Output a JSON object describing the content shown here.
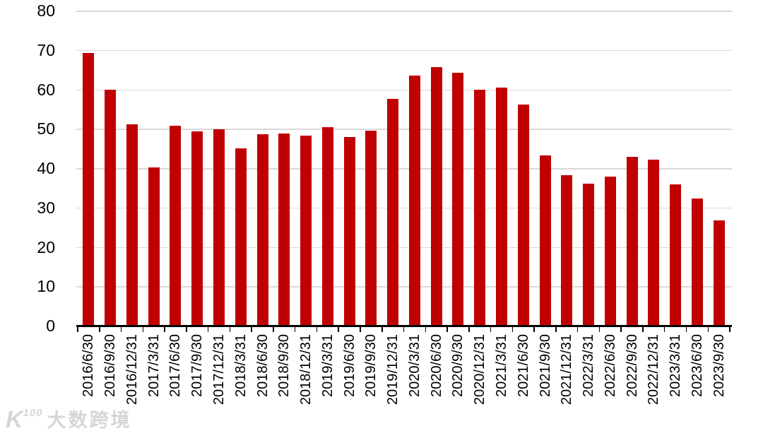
{
  "chart_data": {
    "type": "bar",
    "title": "",
    "xlabel": "",
    "ylabel": "",
    "categories": [
      "2016/6/30",
      "2016/9/30",
      "2016/12/31",
      "2017/3/31",
      "2017/6/30",
      "2017/9/30",
      "2017/12/31",
      "2018/3/31",
      "2018/6/30",
      "2018/9/30",
      "2018/12/31",
      "2019/3/31",
      "2019/6/30",
      "2019/9/30",
      "2019/12/31",
      "2020/3/31",
      "2020/6/30",
      "2020/9/30",
      "2020/12/31",
      "2021/3/31",
      "2021/6/30",
      "2021/9/30",
      "2021/12/31",
      "2022/3/31",
      "2022/6/30",
      "2022/9/30",
      "2022/12/31",
      "2023/3/31",
      "2023/6/30",
      "2023/9/30"
    ],
    "values": [
      69.2,
      59.9,
      51.2,
      40.2,
      50.8,
      49.3,
      49.9,
      45.1,
      48.6,
      48.8,
      48.3,
      50.4,
      47.9,
      49.5,
      57.6,
      63.5,
      65.6,
      64.2,
      60.0,
      60.4,
      56.2,
      43.2,
      38.3,
      36.1,
      37.8,
      42.8,
      42.1,
      35.9,
      32.3,
      26.7
    ],
    "ylim": [
      0,
      80
    ],
    "yticks": [
      0,
      10,
      20,
      30,
      40,
      50,
      60,
      70,
      80
    ],
    "grid": true,
    "legend": "none",
    "bar_color": "#c00000",
    "gridline_color": "#d9d9d9",
    "axis_color": "#000000"
  },
  "watermark": {
    "logo_main": "K",
    "logo_sup": "100",
    "text": "大数跨境"
  }
}
